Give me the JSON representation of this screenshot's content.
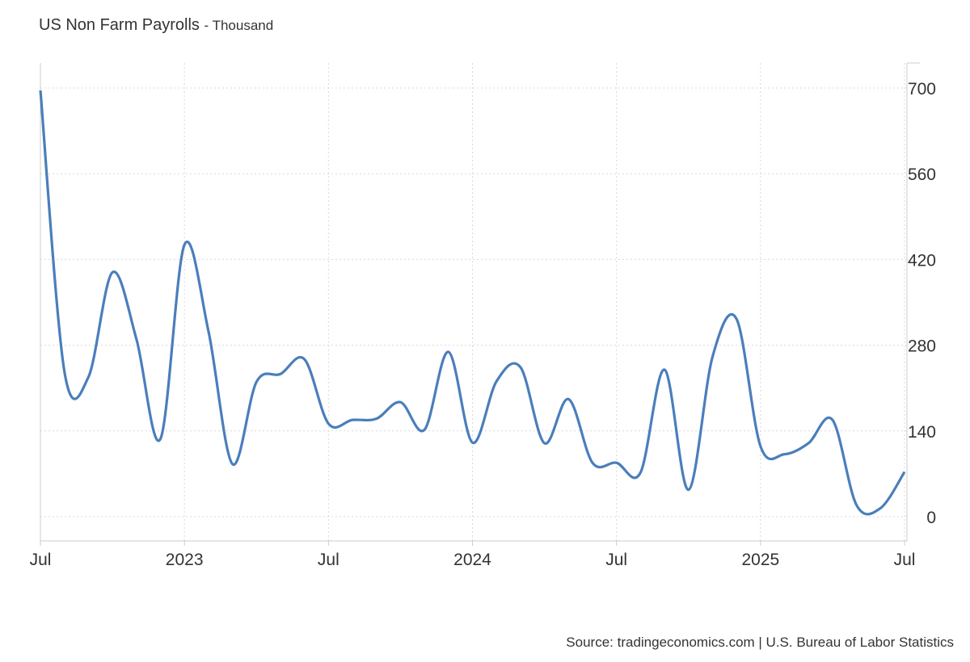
{
  "chart_data": {
    "type": "line",
    "title": "US Non Farm Payrolls",
    "unit": "Thousand",
    "source": "Source: tradingeconomics.com | U.S. Bureau of Labor Statistics",
    "ylim": [
      -40,
      740
    ],
    "yticks": [
      0,
      140,
      280,
      420,
      560,
      700
    ],
    "ytick_labels": [
      "0",
      "140",
      "280",
      "420",
      "560",
      "700"
    ],
    "xtick_labels": [
      "Jul",
      "2023",
      "Jul",
      "2024",
      "Jul",
      "2025",
      "Jul"
    ],
    "xtick_month_index": [
      0,
      6,
      12,
      18,
      24,
      30,
      36
    ],
    "grid": true,
    "color": "#4a7ebb",
    "series": [
      {
        "name": "US Non Farm Payrolls",
        "x": [
          "2022-07",
          "2022-08",
          "2022-09",
          "2022-10",
          "2022-11",
          "2022-12",
          "2023-01",
          "2023-02",
          "2023-03",
          "2023-04",
          "2023-05",
          "2023-06",
          "2023-07",
          "2023-08",
          "2023-09",
          "2023-10",
          "2023-11",
          "2023-12",
          "2024-01",
          "2024-02",
          "2024-03",
          "2024-04",
          "2024-05",
          "2024-06",
          "2024-07",
          "2024-08",
          "2024-09",
          "2024-10",
          "2024-11",
          "2024-12",
          "2025-01",
          "2025-02",
          "2025-03",
          "2025-04",
          "2025-05",
          "2025-06",
          "2025-07"
        ],
        "values": [
          696,
          237,
          228,
          399,
          290,
          127,
          444,
          303,
          86,
          220,
          233,
          257,
          152,
          158,
          160,
          187,
          142,
          269,
          121,
          221,
          244,
          120,
          192,
          88,
          88,
          72,
          240,
          44,
          261,
          323,
          115,
          102,
          120,
          158,
          19,
          14,
          73
        ]
      }
    ]
  }
}
